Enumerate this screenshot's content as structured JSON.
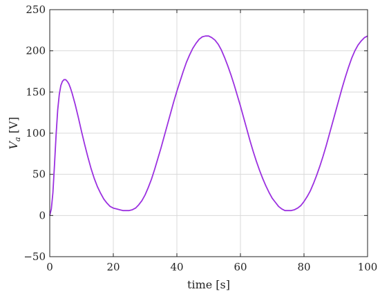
{
  "chart_data": {
    "type": "line",
    "title": "",
    "xlabel": "time [s]",
    "ylabel_main": "V",
    "ylabel_sub": "a",
    "ylabel_unit": " [V]",
    "xlim": [
      0,
      100
    ],
    "ylim": [
      -50,
      250
    ],
    "xticks": [
      0,
      20,
      40,
      60,
      80,
      100
    ],
    "yticks": [
      -50,
      0,
      50,
      100,
      150,
      200,
      250
    ],
    "xtick_labels": [
      "0",
      "20",
      "40",
      "60",
      "80",
      "100"
    ],
    "ytick_labels": [
      "−50",
      "0",
      "50",
      "100",
      "150",
      "200",
      "250"
    ],
    "grid": true,
    "series": [
      {
        "color": "#9b30e0",
        "x": [
          0,
          0.5,
          1,
          1.5,
          2,
          2.5,
          3,
          3.5,
          4,
          4.5,
          5,
          5.5,
          6,
          6.5,
          7,
          8,
          9,
          10,
          11,
          12,
          13,
          14,
          15,
          16,
          17,
          18,
          19,
          20,
          21,
          22,
          23,
          24,
          25,
          26,
          27,
          28,
          29,
          30,
          31,
          32,
          33,
          34,
          35,
          36,
          37,
          38,
          39,
          40,
          41,
          42,
          43,
          44,
          45,
          46,
          47,
          48,
          49,
          50,
          51,
          52,
          53,
          54,
          55,
          56,
          57,
          58,
          59,
          60,
          61,
          62,
          63,
          64,
          65,
          66,
          67,
          68,
          69,
          70,
          71,
          72,
          73,
          74,
          75,
          76,
          77,
          78,
          79,
          80,
          81,
          82,
          83,
          84,
          85,
          86,
          87,
          88,
          89,
          90,
          91,
          92,
          93,
          94,
          95,
          96,
          97,
          98,
          99,
          100
        ],
        "y": [
          0,
          8,
          28,
          62,
          98,
          128,
          147,
          158,
          163,
          165,
          165,
          163,
          160,
          155,
          149,
          135,
          119,
          102,
          86,
          71,
          57,
          45,
          35,
          27,
          20,
          15,
          11,
          9,
          8,
          7,
          6,
          6,
          6,
          7,
          9,
          13,
          18,
          25,
          34,
          44,
          56,
          69,
          82,
          96,
          110,
          124,
          138,
          151,
          163,
          175,
          186,
          195,
          203,
          209,
          214,
          217,
          218,
          218,
          216,
          213,
          208,
          201,
          192,
          182,
          171,
          159,
          146,
          133,
          119,
          105,
          91,
          78,
          66,
          55,
          45,
          36,
          28,
          21,
          16,
          11,
          8,
          6,
          6,
          6,
          7,
          9,
          12,
          17,
          23,
          30,
          39,
          49,
          60,
          72,
          85,
          99,
          113,
          127,
          141,
          155,
          168,
          180,
          191,
          200,
          207,
          212,
          216,
          218
        ]
      }
    ]
  }
}
